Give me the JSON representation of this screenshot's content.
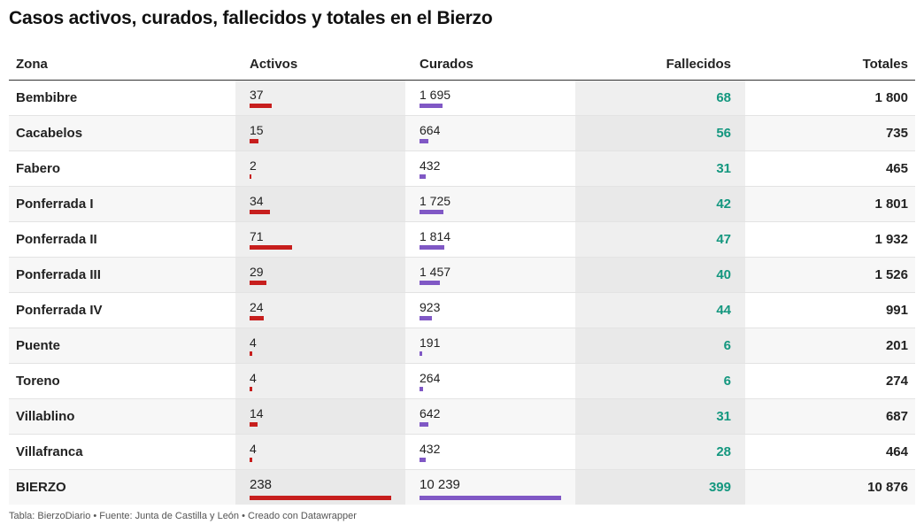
{
  "title": "Casos activos, curados, fallecidos y totales en el Bierzo",
  "footer": "Tabla: BierzoDiario • Fuente: Junta de Castilla y León • Creado con Datawrapper",
  "colors": {
    "activos_bar": "#c71e1d",
    "curados_bar": "#8058c5",
    "fallecidos_text": "#14977f"
  },
  "chart_data": {
    "type": "table",
    "columns": [
      "Zona",
      "Activos",
      "Curados",
      "Fallecidos",
      "Totales"
    ],
    "bar_max": {
      "activos": 238,
      "curados": 10239
    },
    "rows": [
      {
        "zona": "Bembibre",
        "activos": 37,
        "activos_label": "37",
        "curados": 1695,
        "curados_label": "1 695",
        "fallecidos": "68",
        "totales": "1 800"
      },
      {
        "zona": "Cacabelos",
        "activos": 15,
        "activos_label": "15",
        "curados": 664,
        "curados_label": "664",
        "fallecidos": "56",
        "totales": "735"
      },
      {
        "zona": "Fabero",
        "activos": 2,
        "activos_label": "2",
        "curados": 432,
        "curados_label": "432",
        "fallecidos": "31",
        "totales": "465"
      },
      {
        "zona": "Ponferrada I",
        "activos": 34,
        "activos_label": "34",
        "curados": 1725,
        "curados_label": "1 725",
        "fallecidos": "42",
        "totales": "1 801"
      },
      {
        "zona": "Ponferrada II",
        "activos": 71,
        "activos_label": "71",
        "curados": 1814,
        "curados_label": "1 814",
        "fallecidos": "47",
        "totales": "1 932"
      },
      {
        "zona": "Ponferrada III",
        "activos": 29,
        "activos_label": "29",
        "curados": 1457,
        "curados_label": "1 457",
        "fallecidos": "40",
        "totales": "1 526"
      },
      {
        "zona": "Ponferrada IV",
        "activos": 24,
        "activos_label": "24",
        "curados": 923,
        "curados_label": "923",
        "fallecidos": "44",
        "totales": "991"
      },
      {
        "zona": "Puente",
        "activos": 4,
        "activos_label": "4",
        "curados": 191,
        "curados_label": "191",
        "fallecidos": "6",
        "totales": "201"
      },
      {
        "zona": "Toreno",
        "activos": 4,
        "activos_label": "4",
        "curados": 264,
        "curados_label": "264",
        "fallecidos": "6",
        "totales": "274"
      },
      {
        "zona": "Villablino",
        "activos": 14,
        "activos_label": "14",
        "curados": 642,
        "curados_label": "642",
        "fallecidos": "31",
        "totales": "687"
      },
      {
        "zona": "Villafranca",
        "activos": 4,
        "activos_label": "4",
        "curados": 432,
        "curados_label": "432",
        "fallecidos": "28",
        "totales": "464"
      },
      {
        "zona": "BIERZO",
        "activos": 238,
        "activos_label": "238",
        "curados": 10239,
        "curados_label": "10 239",
        "fallecidos": "399",
        "totales": "10 876"
      }
    ]
  }
}
